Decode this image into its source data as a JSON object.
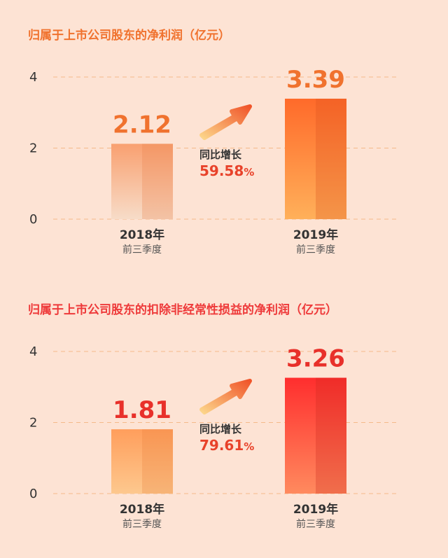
{
  "colors": {
    "background": "#fde3d4",
    "title1": "#f0722e",
    "title2": "#ee3a3a",
    "value1": "#f0722e",
    "value2": "#e8302a",
    "growth": "#e8422a"
  },
  "icons": {
    "arrow": "growth-arrow-icon"
  },
  "chart_data": [
    {
      "type": "bar",
      "title": "归属于上市公司股东的净利润",
      "unit": "（亿元）",
      "categories": [
        {
          "year": "2018年",
          "period": "前三季度"
        },
        {
          "year": "2019年",
          "period": "前三季度"
        }
      ],
      "values": [
        2.12,
        3.39
      ],
      "value_labels": [
        "2.12",
        "3.39"
      ],
      "ylim": [
        0,
        4
      ],
      "yticks": [
        "0",
        "2",
        "4"
      ],
      "grid": true,
      "growth": {
        "label": "同比增长",
        "value": "59.58",
        "suffix": "%"
      }
    },
    {
      "type": "bar",
      "title": "归属于上市公司股东的扣除非经常性损益的净利润",
      "unit": "（亿元）",
      "categories": [
        {
          "year": "2018年",
          "period": "前三季度"
        },
        {
          "year": "2019年",
          "period": "前三季度"
        }
      ],
      "values": [
        1.81,
        3.26
      ],
      "value_labels": [
        "1.81",
        "3.26"
      ],
      "ylim": [
        0,
        4
      ],
      "yticks": [
        "0",
        "2",
        "4"
      ],
      "grid": true,
      "growth": {
        "label": "同比增长",
        "value": "79.61",
        "suffix": "%"
      }
    }
  ]
}
